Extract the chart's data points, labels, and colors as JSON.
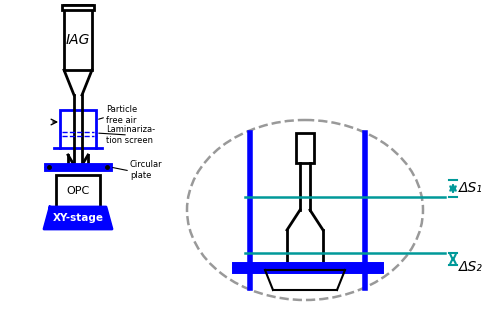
{
  "fig_width": 5.0,
  "fig_height": 3.13,
  "dpi": 100,
  "bg_color": "#ffffff",
  "black": "#000000",
  "blue": "#0000ff",
  "teal": "#009999",
  "gray": "#999999",
  "label_particle_free_air": "Particle\nfree air",
  "label_laminarization": "Laminariza-\ntion screen",
  "label_circular_plate": "Circular\nplate",
  "label_opc": "OPC",
  "label_xy_stage": "XY-stage",
  "label_iag": "IAG",
  "label_ds1": "ΔS₁",
  "label_ds2": "ΔS₂"
}
